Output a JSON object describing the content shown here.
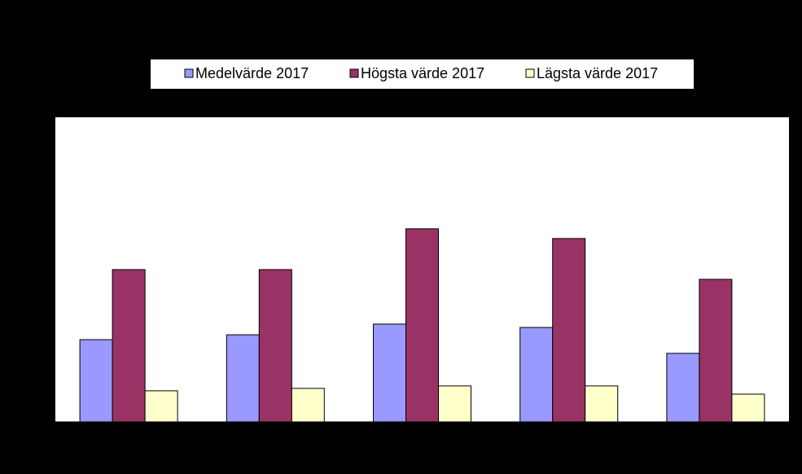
{
  "chart_data": {
    "type": "bar",
    "categories": [
      null,
      null,
      null,
      null,
      null
    ],
    "series": [
      {
        "name": "Medelvärde 2017",
        "color": "#9999ff",
        "values": [
          27,
          28.6,
          32.1,
          31,
          22.5
        ]
      },
      {
        "name": "Högsta värde 2017",
        "color": "#993366",
        "values": [
          50,
          50,
          63.4,
          60.2,
          46.8
        ]
      },
      {
        "name": "Lägsta värde 2017",
        "color": "#ffffcc",
        "values": [
          10.2,
          11,
          11.8,
          11.8,
          9.1
        ]
      }
    ],
    "ylim": [
      0,
      100
    ],
    "legend": "top"
  }
}
